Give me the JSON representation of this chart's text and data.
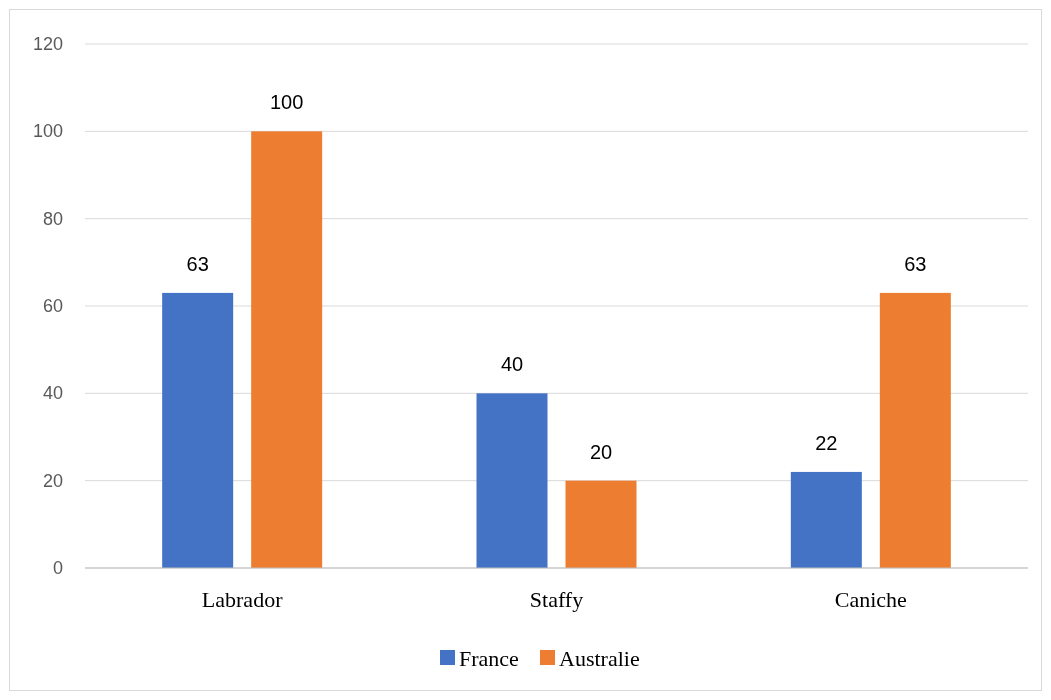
{
  "chart_data": {
    "type": "bar",
    "categories": [
      "Labrador",
      "Staffy",
      "Caniche"
    ],
    "series": [
      {
        "name": "France",
        "color": "#4472c4",
        "values": [
          63,
          40,
          22
        ]
      },
      {
        "name": "Australie",
        "color": "#ed7d31",
        "values": [
          100,
          20,
          63
        ]
      }
    ],
    "ylim": [
      0,
      120
    ],
    "yticks": [
      0,
      20,
      40,
      60,
      80,
      100,
      120
    ],
    "grid": "y",
    "data_labels": true,
    "legend": "bottom"
  }
}
